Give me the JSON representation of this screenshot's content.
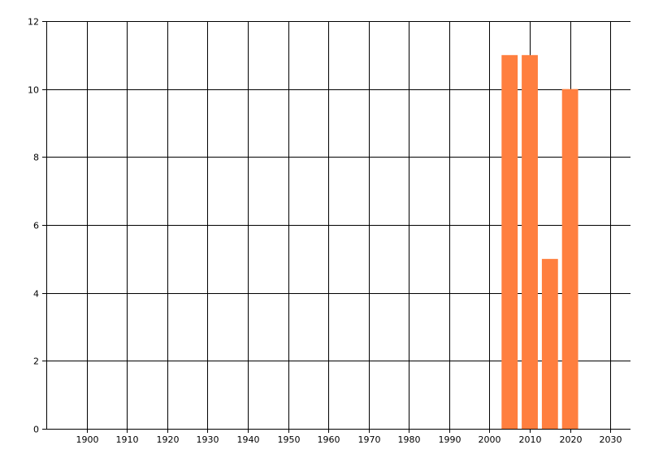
{
  "chart_data": {
    "type": "bar",
    "title": "",
    "xlabel": "",
    "ylabel": "",
    "x": [
      2005,
      2010,
      2015,
      2020
    ],
    "values": [
      11,
      11,
      5,
      10
    ],
    "bar_width_years": 4,
    "xlim": [
      1890,
      2035
    ],
    "ylim": [
      0,
      12
    ],
    "xticks": [
      1900,
      1910,
      1920,
      1930,
      1940,
      1950,
      1960,
      1970,
      1980,
      1990,
      2000,
      2010,
      2020,
      2030
    ],
    "yticks": [
      0,
      2,
      4,
      6,
      8,
      10,
      12
    ],
    "grid": true,
    "colors": {
      "bar": "#FF7F3F",
      "grid": "#000000",
      "background": "#FFFFFF"
    }
  }
}
